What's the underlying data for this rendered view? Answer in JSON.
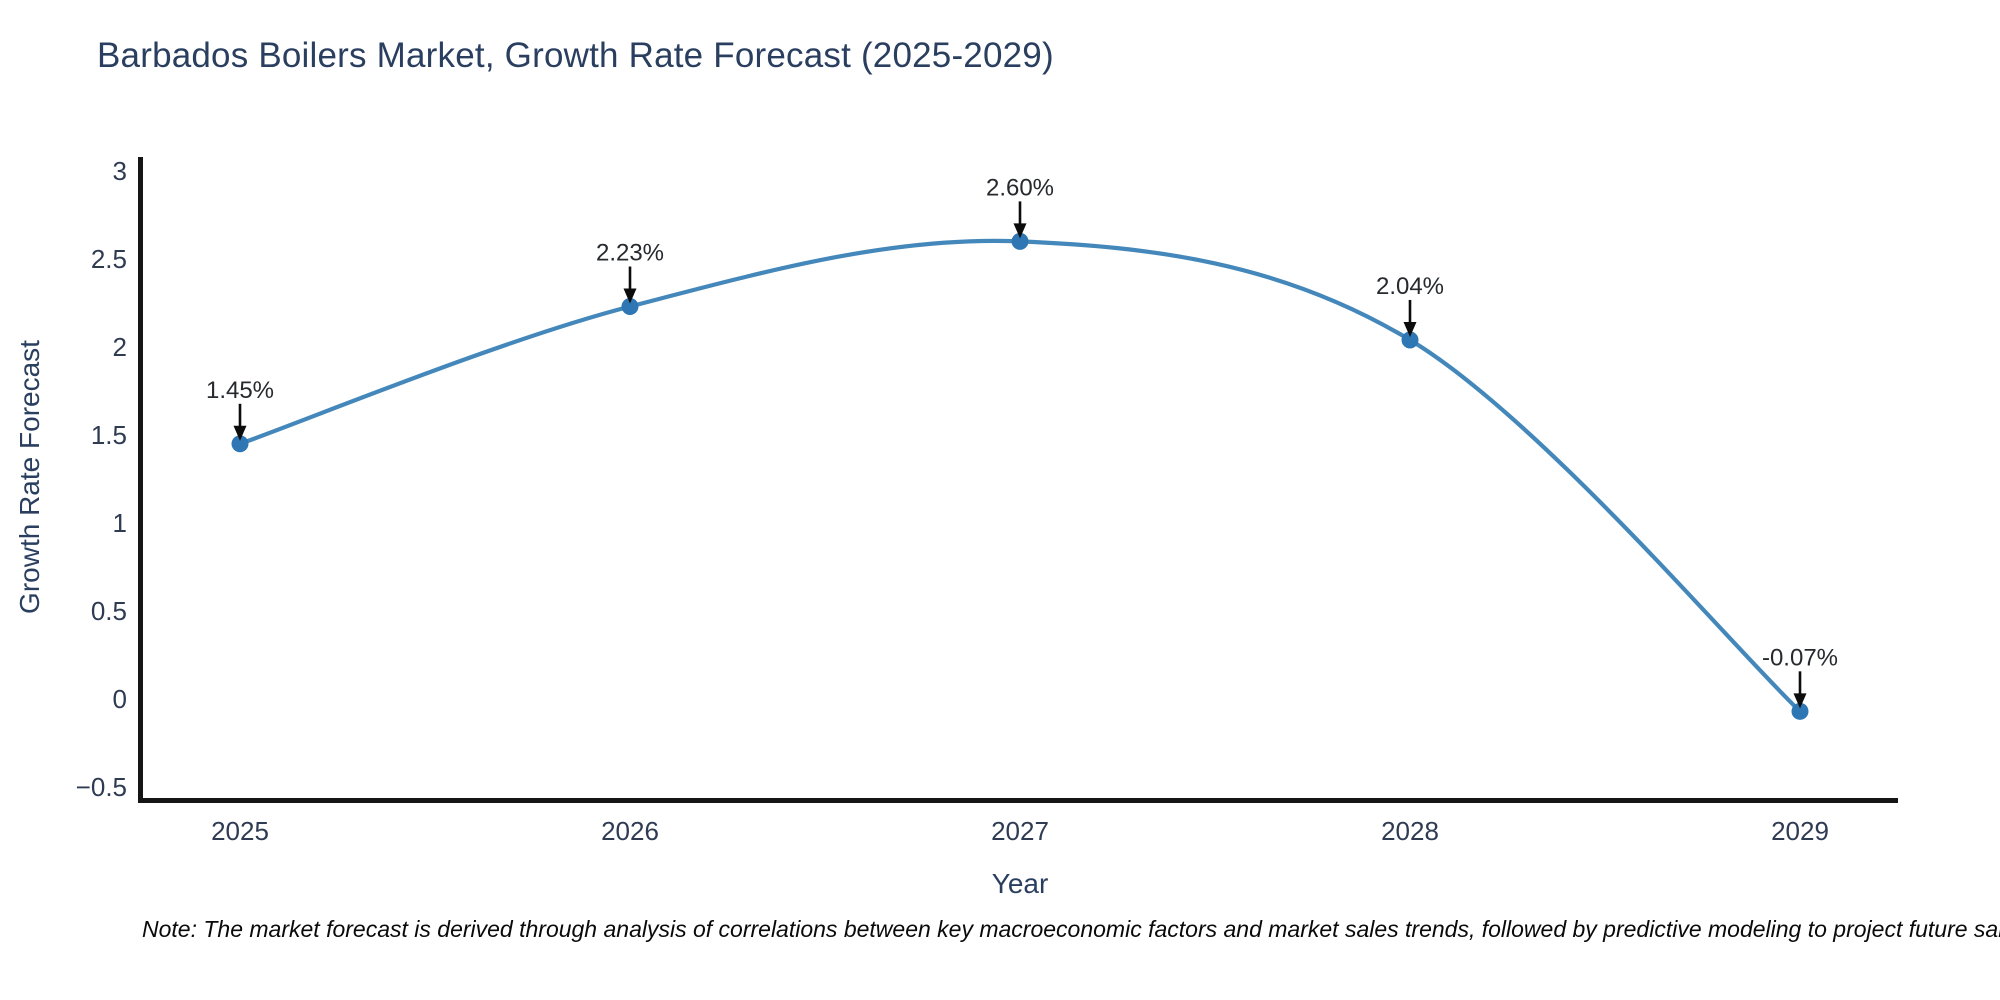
{
  "title": "Barbados Boilers Market, Growth Rate Forecast (2025-2029)",
  "note": "Note: The market forecast is derived through analysis of correlations between key macroeconomic factors and market sales trends, followed by predictive modeling to project future sales.",
  "chart_data": {
    "type": "line",
    "title": "Barbados Boilers Market, Growth Rate Forecast (2025-2029)",
    "xlabel": "Year",
    "ylabel": "Growth Rate Forecast",
    "categories": [
      "2025",
      "2026",
      "2027",
      "2028",
      "2029"
    ],
    "values": [
      1.45,
      2.23,
      2.6,
      2.04,
      -0.07
    ],
    "point_labels": [
      "1.45%",
      "2.23%",
      "2.60%",
      "2.04%",
      "-0.07%"
    ],
    "ytick_values": [
      3,
      2.5,
      2,
      1.5,
      1,
      0.5,
      0,
      -0.5
    ],
    "ytick_labels": [
      "3",
      "2.5",
      "2",
      "1.5",
      "1",
      "0.5",
      "0",
      "−0.5"
    ],
    "ylim": [
      -0.5,
      3
    ],
    "grid": false,
    "legend": "none",
    "line_shape": "spline",
    "marker": "circle",
    "annotation_arrows": "black-down-arrows"
  },
  "colors": {
    "background": "#ffffff",
    "title_text": "#2a3f5f",
    "axis_text": "#2e3b52",
    "annotation_text": "#26292e",
    "axis_line": "#151515",
    "line": "#4488bb",
    "marker": "#2e77b4",
    "arrow": "#0c0c0c"
  }
}
